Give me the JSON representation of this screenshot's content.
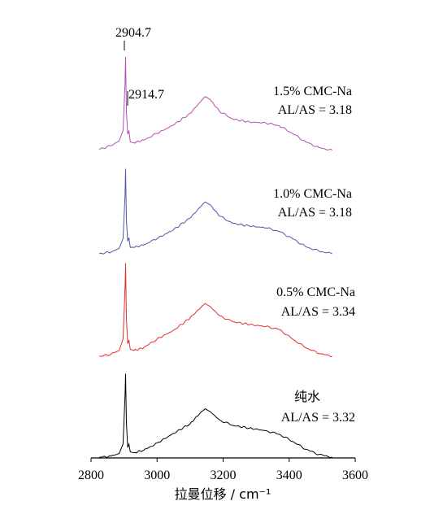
{
  "chart_data": {
    "type": "line",
    "xlabel": "拉曼位移 / cm⁻¹",
    "ylabel": "",
    "xlim": [
      2800,
      3600
    ],
    "x_ticks": [
      "2800",
      "3000",
      "3200",
      "3400",
      "3600"
    ],
    "peak_annotations": [
      "2904.7",
      "2914.7"
    ],
    "series": [
      {
        "name": "1.5% CMC-Na",
        "ratio": "AL/AS = 3.18",
        "color": "#b64fb0",
        "points": [
          [
            2825,
            0.02
          ],
          [
            2860,
            0.06
          ],
          [
            2885,
            0.11
          ],
          [
            2897,
            0.22
          ],
          [
            2903,
            0.72
          ],
          [
            2904.7,
            1.0
          ],
          [
            2907,
            0.42
          ],
          [
            2911,
            0.18
          ],
          [
            2914.7,
            0.22
          ],
          [
            2919,
            0.1
          ],
          [
            2930,
            0.09
          ],
          [
            2960,
            0.12
          ],
          [
            3000,
            0.19
          ],
          [
            3050,
            0.28
          ],
          [
            3100,
            0.4
          ],
          [
            3130,
            0.52
          ],
          [
            3145,
            0.58
          ],
          [
            3160,
            0.55
          ],
          [
            3190,
            0.42
          ],
          [
            3230,
            0.34
          ],
          [
            3280,
            0.31
          ],
          [
            3330,
            0.3
          ],
          [
            3370,
            0.27
          ],
          [
            3410,
            0.19
          ],
          [
            3450,
            0.1
          ],
          [
            3490,
            0.04
          ],
          [
            3530,
            0.01
          ]
        ]
      },
      {
        "name": "1.0% CMC-Na",
        "ratio": "AL/AS = 3.18",
        "color": "#4a5aa8",
        "points": [
          [
            2825,
            0.0
          ],
          [
            2860,
            0.02
          ],
          [
            2885,
            0.06
          ],
          [
            2897,
            0.17
          ],
          [
            2903,
            0.65
          ],
          [
            2904.7,
            0.95
          ],
          [
            2907,
            0.38
          ],
          [
            2911,
            0.14
          ],
          [
            2914.7,
            0.18
          ],
          [
            2919,
            0.07
          ],
          [
            2930,
            0.07
          ],
          [
            2960,
            0.1
          ],
          [
            3000,
            0.17
          ],
          [
            3050,
            0.27
          ],
          [
            3100,
            0.4
          ],
          [
            3130,
            0.52
          ],
          [
            3145,
            0.58
          ],
          [
            3160,
            0.55
          ],
          [
            3190,
            0.42
          ],
          [
            3230,
            0.34
          ],
          [
            3280,
            0.31
          ],
          [
            3330,
            0.29
          ],
          [
            3370,
            0.25
          ],
          [
            3410,
            0.17
          ],
          [
            3450,
            0.08
          ],
          [
            3490,
            0.03
          ],
          [
            3530,
            0.0
          ]
        ]
      },
      {
        "name": "0.5% CMC-Na",
        "ratio": "AL/AS = 3.34",
        "color": "#e03030",
        "points": [
          [
            2825,
            0.0
          ],
          [
            2860,
            0.02
          ],
          [
            2885,
            0.06
          ],
          [
            2897,
            0.18
          ],
          [
            2903,
            0.7
          ],
          [
            2904.7,
            0.97
          ],
          [
            2907,
            0.4
          ],
          [
            2911,
            0.13
          ],
          [
            2914.7,
            0.17
          ],
          [
            2919,
            0.07
          ],
          [
            2930,
            0.06
          ],
          [
            2960,
            0.09
          ],
          [
            3000,
            0.18
          ],
          [
            3050,
            0.27
          ],
          [
            3100,
            0.4
          ],
          [
            3130,
            0.5
          ],
          [
            3145,
            0.55
          ],
          [
            3160,
            0.52
          ],
          [
            3190,
            0.42
          ],
          [
            3230,
            0.36
          ],
          [
            3280,
            0.33
          ],
          [
            3330,
            0.31
          ],
          [
            3370,
            0.28
          ],
          [
            3410,
            0.18
          ],
          [
            3450,
            0.09
          ],
          [
            3490,
            0.03
          ],
          [
            3530,
            0.0
          ]
        ]
      },
      {
        "name": "纯水",
        "ratio": "AL/AS = 3.32",
        "color": "#000000",
        "points": [
          [
            2825,
            0.0
          ],
          [
            2860,
            0.01
          ],
          [
            2885,
            0.04
          ],
          [
            2897,
            0.15
          ],
          [
            2903,
            0.7
          ],
          [
            2904.7,
            0.95
          ],
          [
            2907,
            0.4
          ],
          [
            2911,
            0.11
          ],
          [
            2914.7,
            0.15
          ],
          [
            2919,
            0.06
          ],
          [
            2930,
            0.05
          ],
          [
            2960,
            0.08
          ],
          [
            3000,
            0.16
          ],
          [
            3050,
            0.27
          ],
          [
            3100,
            0.38
          ],
          [
            3130,
            0.5
          ],
          [
            3145,
            0.55
          ],
          [
            3160,
            0.52
          ],
          [
            3190,
            0.42
          ],
          [
            3230,
            0.36
          ],
          [
            3280,
            0.33
          ],
          [
            3330,
            0.3
          ],
          [
            3370,
            0.26
          ],
          [
            3410,
            0.18
          ],
          [
            3450,
            0.09
          ],
          [
            3490,
            0.03
          ],
          [
            3530,
            0.0
          ]
        ]
      }
    ]
  }
}
